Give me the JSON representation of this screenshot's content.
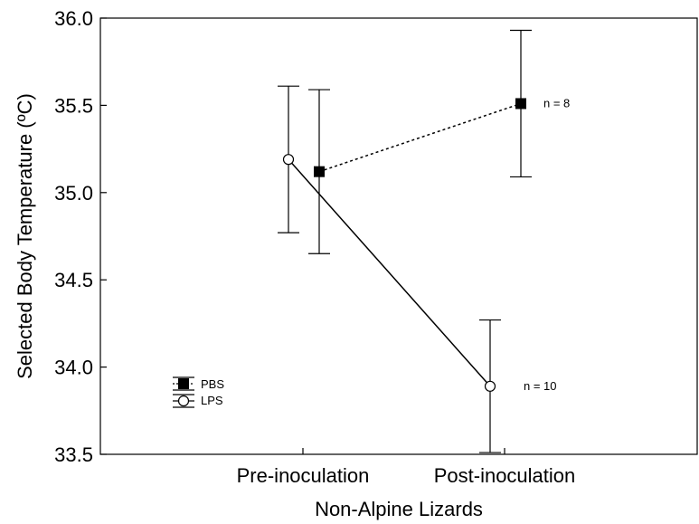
{
  "chart_data": {
    "type": "line",
    "title": "",
    "xlabel": "Non-Alpine Lizards",
    "ylabel": "Selected Body Temperature (ºC)",
    "categories": [
      "Pre-inoculation",
      "Post-inoculation"
    ],
    "ylim": [
      33.5,
      36.0
    ],
    "yticks": [
      "33.5",
      "34.0",
      "34.5",
      "35.0",
      "35.5",
      "36.0"
    ],
    "grid": false,
    "legend_placement": "bottom-left",
    "series": [
      {
        "name": "PBS",
        "marker": "filled-square",
        "line_style": "dotted",
        "color": "#000000",
        "values": [
          35.12,
          35.51
        ],
        "error": [
          [
            34.65,
            35.59
          ],
          [
            35.09,
            35.93
          ]
        ],
        "annotation": "n = 8"
      },
      {
        "name": "LPS",
        "marker": "open-circle",
        "line_style": "solid",
        "color": "#000000",
        "values": [
          35.19,
          33.89
        ],
        "error": [
          [
            34.77,
            35.61
          ],
          [
            33.51,
            34.27
          ]
        ],
        "annotation": "n = 10"
      }
    ]
  }
}
